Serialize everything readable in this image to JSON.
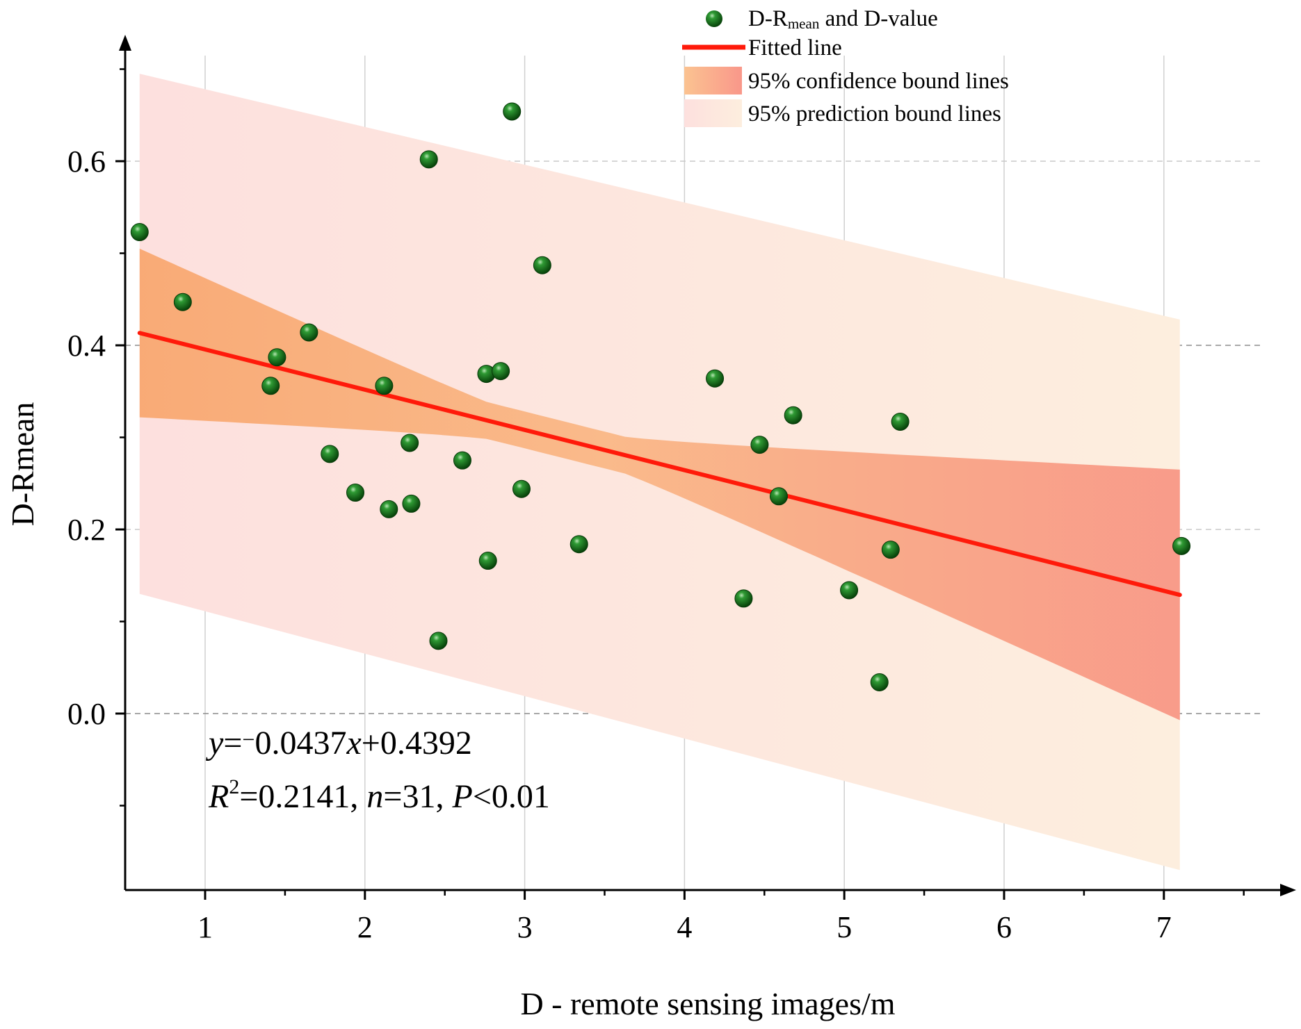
{
  "chart_data": {
    "type": "scatter",
    "xlabel": "D - remote sensing images/m",
    "ylabel": "D-Rmean",
    "xlim": [
      0.5,
      7.8
    ],
    "ylim": [
      -0.19,
      0.73
    ],
    "x_ticks": [
      1,
      2,
      3,
      4,
      5,
      6,
      7
    ],
    "y_ticks": [
      0.0,
      0.2,
      0.4,
      0.6
    ],
    "x_tick_labels": [
      "1",
      "2",
      "3",
      "4",
      "5",
      "6",
      "7"
    ],
    "y_tick_labels": [
      "0.0",
      "0.2",
      "0.4",
      "0.6"
    ],
    "grid": {
      "vertical": true,
      "horizontal_dashed": true
    },
    "legend_position": "top-right",
    "legend": {
      "scatter": {
        "prefix": "D-R",
        "subscript": "mean",
        "suffix": " and D-value"
      },
      "fit": "Fitted line",
      "confidence": "95% confidence bound lines",
      "prediction": "95% prediction bound lines"
    },
    "equation": {
      "line1": {
        "y": "y",
        "eq": "=",
        "minus": "−",
        "coef": "0.0437",
        "x": "x",
        "rest": "+0.4392"
      },
      "line2": {
        "R": "R",
        "sup": "2",
        "r2": "=0.2141, ",
        "n": "n",
        "nval": "=31, ",
        "P": "P",
        "pval": "<0.01"
      }
    },
    "fit": {
      "slope": -0.0437,
      "intercept": 0.4392,
      "x_range": [
        0.59,
        7.1
      ]
    },
    "confidence_band": {
      "x": [
        0.59,
        7.1
      ],
      "upper": [
        0.505,
        0.265
      ],
      "lower": [
        0.32,
        -0.007
      ],
      "center_x": 3.2
    },
    "prediction_band": {
      "x": [
        0.59,
        7.1
      ],
      "upper": [
        0.695,
        0.428
      ],
      "lower": [
        0.13,
        -0.17
      ]
    },
    "colors": {
      "points": "#0f6a14",
      "fit_line": "#ff1a0a",
      "confidence_band": "#f9a06a",
      "prediction_band": "#fde2d8",
      "axis": "#000000",
      "grid": "#d0d0d0",
      "dashed_grid": "#8c8c8c"
    },
    "points": [
      {
        "x": 0.59,
        "y": 0.523
      },
      {
        "x": 0.86,
        "y": 0.447
      },
      {
        "x": 1.41,
        "y": 0.356
      },
      {
        "x": 1.45,
        "y": 0.387
      },
      {
        "x": 1.65,
        "y": 0.414
      },
      {
        "x": 1.78,
        "y": 0.282
      },
      {
        "x": 1.94,
        "y": 0.24
      },
      {
        "x": 2.12,
        "y": 0.356
      },
      {
        "x": 2.15,
        "y": 0.222
      },
      {
        "x": 2.28,
        "y": 0.294
      },
      {
        "x": 2.29,
        "y": 0.228
      },
      {
        "x": 2.4,
        "y": 0.602
      },
      {
        "x": 2.46,
        "y": 0.079
      },
      {
        "x": 2.61,
        "y": 0.275
      },
      {
        "x": 2.76,
        "y": 0.369
      },
      {
        "x": 2.77,
        "y": 0.166
      },
      {
        "x": 2.85,
        "y": 0.372
      },
      {
        "x": 2.92,
        "y": 0.654
      },
      {
        "x": 2.98,
        "y": 0.244
      },
      {
        "x": 3.11,
        "y": 0.487
      },
      {
        "x": 3.34,
        "y": 0.184
      },
      {
        "x": 4.19,
        "y": 0.364
      },
      {
        "x": 4.37,
        "y": 0.125
      },
      {
        "x": 4.47,
        "y": 0.292
      },
      {
        "x": 4.59,
        "y": 0.236
      },
      {
        "x": 4.68,
        "y": 0.324
      },
      {
        "x": 5.03,
        "y": 0.134
      },
      {
        "x": 5.22,
        "y": 0.034
      },
      {
        "x": 5.29,
        "y": 0.178
      },
      {
        "x": 5.35,
        "y": 0.317
      },
      {
        "x": 7.11,
        "y": 0.182
      }
    ]
  }
}
